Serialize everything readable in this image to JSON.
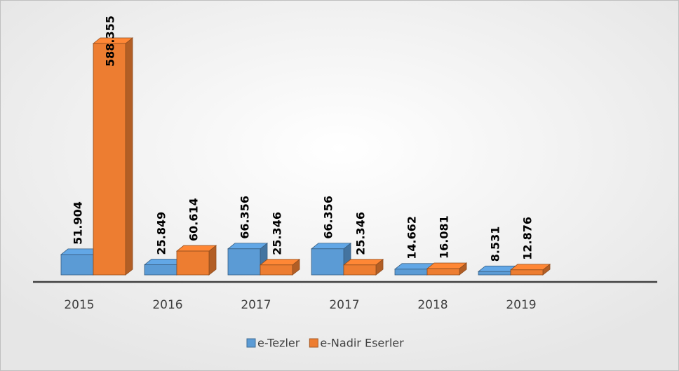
{
  "chart_data": {
    "type": "bar3d",
    "categories": [
      "2015",
      "2016",
      "2017",
      "2017",
      "2018",
      "2019"
    ],
    "series": [
      {
        "name": "e-Tezler",
        "color": "#5b9bd5",
        "values": [
          51904,
          25849,
          66356,
          66356,
          14662,
          8531
        ],
        "value_labels": [
          "51.904",
          "25.849",
          "66.356",
          "66.356",
          "14.662",
          "8.531"
        ]
      },
      {
        "name": "e-Nadir Eserler",
        "color": "#ed7d31",
        "values": [
          588355,
          60614,
          25346,
          25346,
          16081,
          12876
        ],
        "value_labels": [
          "588.355",
          "60.614",
          "25.346",
          "25.346",
          "16.081",
          "12.876"
        ]
      }
    ],
    "legend": "bottom"
  }
}
